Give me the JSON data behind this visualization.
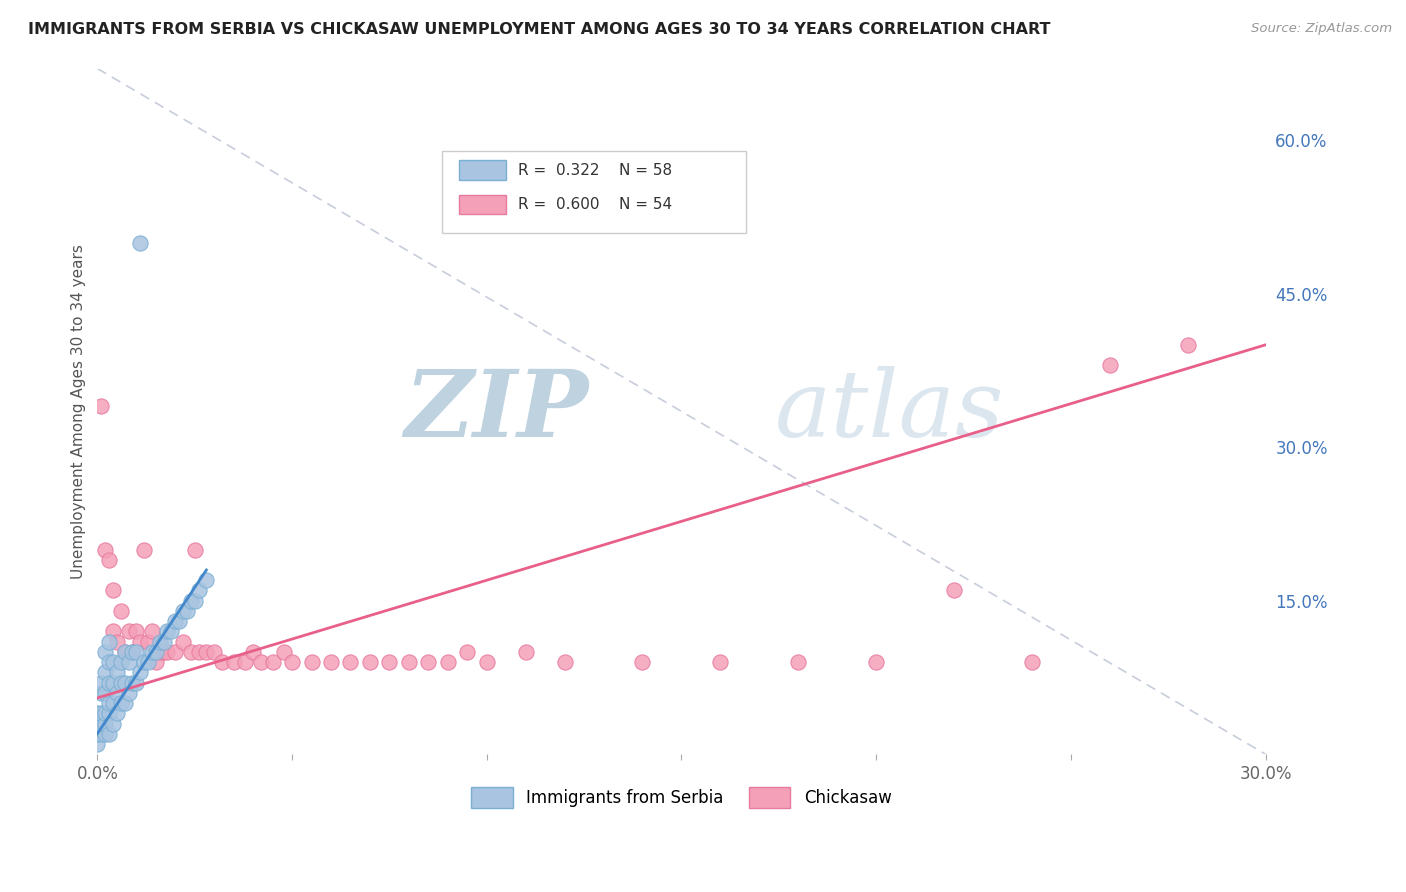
{
  "title": "IMMIGRANTS FROM SERBIA VS CHICKASAW UNEMPLOYMENT AMONG AGES 30 TO 34 YEARS CORRELATION CHART",
  "source": "Source: ZipAtlas.com",
  "ylabel": "Unemployment Among Ages 30 to 34 years",
  "xlim": [
    0.0,
    0.3
  ],
  "ylim": [
    0.0,
    0.67
  ],
  "right_yticks": [
    0.0,
    0.15,
    0.3,
    0.45,
    0.6
  ],
  "right_yticklabels": [
    "",
    "15.0%",
    "30.0%",
    "45.0%",
    "60.0%"
  ],
  "legend_R1": "R =  0.322",
  "legend_N1": "N = 58",
  "legend_R2": "R =  0.600",
  "legend_N2": "N = 54",
  "serbia_color": "#a8c4e0",
  "chickasaw_color": "#f4a0b8",
  "serbia_edge_color": "#7aafd4",
  "chickasaw_edge_color": "#e87aa0",
  "regression_serbia_color": "#4488cc",
  "regression_chickasaw_color": "#e8608a",
  "diag_color": "#b0b8cc",
  "grid_color": "#d8d8d8",
  "watermark": "ZIPatlas",
  "watermark_color_zip": "#9ab8d0",
  "watermark_color_atlas": "#b8cce0",
  "serbia_points_x": [
    0.0,
    0.0,
    0.0,
    0.0,
    0.001,
    0.001,
    0.001,
    0.001,
    0.001,
    0.002,
    0.002,
    0.002,
    0.002,
    0.002,
    0.002,
    0.003,
    0.003,
    0.003,
    0.003,
    0.003,
    0.003,
    0.004,
    0.004,
    0.004,
    0.004,
    0.005,
    0.005,
    0.005,
    0.006,
    0.006,
    0.006,
    0.007,
    0.007,
    0.007,
    0.008,
    0.008,
    0.009,
    0.009,
    0.01,
    0.01,
    0.011,
    0.012,
    0.013,
    0.014,
    0.015,
    0.016,
    0.017,
    0.018,
    0.019,
    0.02,
    0.021,
    0.022,
    0.023,
    0.024,
    0.025,
    0.026,
    0.028,
    0.011
  ],
  "serbia_points_y": [
    0.01,
    0.02,
    0.03,
    0.04,
    0.02,
    0.03,
    0.04,
    0.06,
    0.07,
    0.02,
    0.03,
    0.04,
    0.06,
    0.08,
    0.1,
    0.02,
    0.04,
    0.05,
    0.07,
    0.09,
    0.11,
    0.03,
    0.05,
    0.07,
    0.09,
    0.04,
    0.06,
    0.08,
    0.05,
    0.07,
    0.09,
    0.05,
    0.07,
    0.1,
    0.06,
    0.09,
    0.07,
    0.1,
    0.07,
    0.1,
    0.08,
    0.09,
    0.09,
    0.1,
    0.1,
    0.11,
    0.11,
    0.12,
    0.12,
    0.13,
    0.13,
    0.14,
    0.14,
    0.15,
    0.15,
    0.16,
    0.17,
    0.5
  ],
  "chickasaw_points_x": [
    0.001,
    0.002,
    0.003,
    0.004,
    0.004,
    0.005,
    0.006,
    0.007,
    0.008,
    0.009,
    0.01,
    0.011,
    0.012,
    0.013,
    0.014,
    0.015,
    0.016,
    0.017,
    0.018,
    0.02,
    0.022,
    0.024,
    0.025,
    0.026,
    0.028,
    0.03,
    0.032,
    0.035,
    0.038,
    0.04,
    0.042,
    0.045,
    0.048,
    0.05,
    0.055,
    0.06,
    0.065,
    0.07,
    0.075,
    0.08,
    0.085,
    0.09,
    0.095,
    0.1,
    0.11,
    0.12,
    0.14,
    0.16,
    0.18,
    0.2,
    0.22,
    0.24,
    0.26,
    0.28
  ],
  "chickasaw_points_y": [
    0.34,
    0.2,
    0.19,
    0.12,
    0.16,
    0.11,
    0.14,
    0.1,
    0.12,
    0.1,
    0.12,
    0.11,
    0.2,
    0.11,
    0.12,
    0.09,
    0.1,
    0.1,
    0.1,
    0.1,
    0.11,
    0.1,
    0.2,
    0.1,
    0.1,
    0.1,
    0.09,
    0.09,
    0.09,
    0.1,
    0.09,
    0.09,
    0.1,
    0.09,
    0.09,
    0.09,
    0.09,
    0.09,
    0.09,
    0.09,
    0.09,
    0.09,
    0.1,
    0.09,
    0.1,
    0.09,
    0.09,
    0.09,
    0.09,
    0.09,
    0.16,
    0.09,
    0.38,
    0.4
  ]
}
